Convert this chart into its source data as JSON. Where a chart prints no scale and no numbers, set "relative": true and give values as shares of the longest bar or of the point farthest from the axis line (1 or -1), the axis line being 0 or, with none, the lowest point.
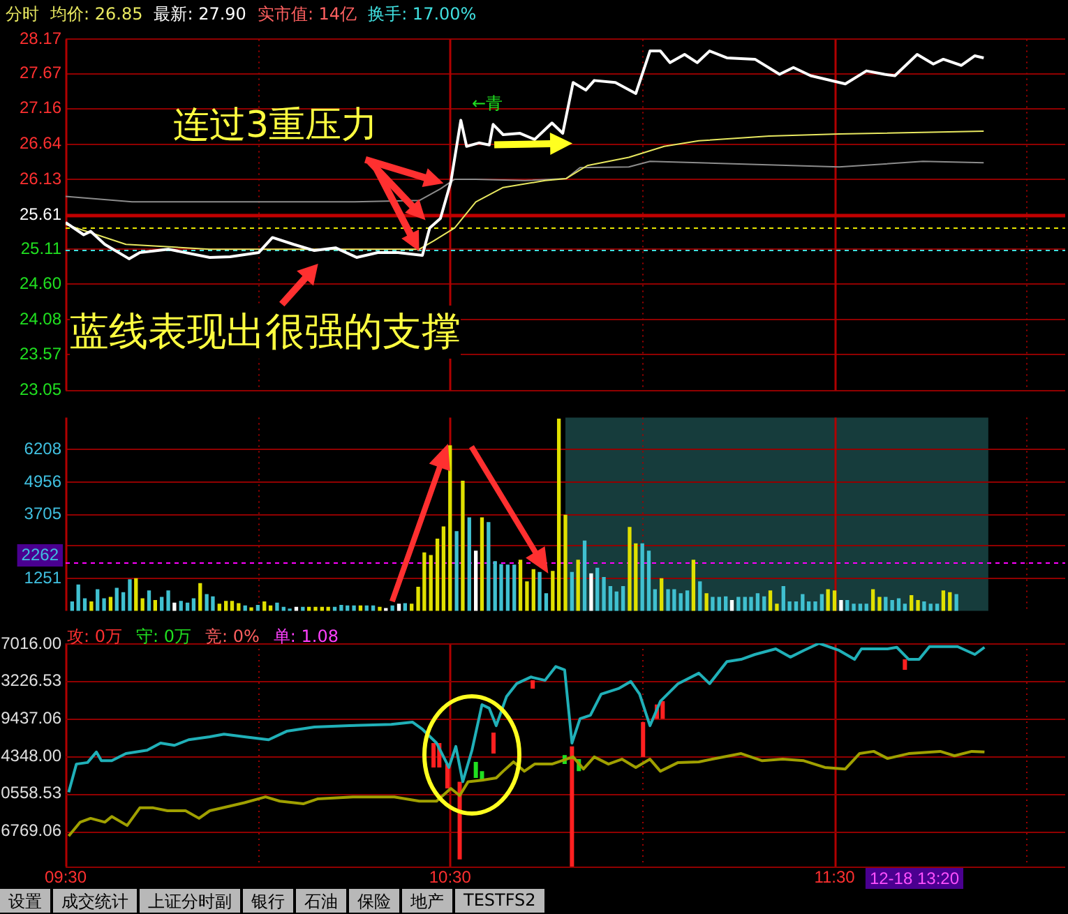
{
  "chart_data": [
    {
      "type": "line",
      "xlim": [
        9.5,
        12.1
      ],
      "xticks": [
        9.5,
        10,
        10.5,
        11,
        11.5,
        12
      ],
      "ylim": [
        23.05,
        28.17
      ],
      "yticks": [
        23.05,
        23.57,
        24.08,
        {
          "value": 24.6,
          "label": "24.60"
        },
        25.11,
        25.61,
        26.13,
        26.64,
        27.16,
        27.67,
        28.17
      ],
      "grid": true,
      "tick_labels": "y",
      "ref_lines": [
        {
          "axis": "y",
          "value": 25.61,
          "color": "#c00000",
          "line_style": "solid"
        },
        {
          "axis": "y",
          "value": 25.43,
          "color": "#e8e800",
          "line_style": "dashed"
        },
        {
          "axis": "y",
          "value": 25.11,
          "color": "#40e0e0",
          "line_style": "dashed"
        }
      ],
      "series": [
        {
          "color": "#ffffff",
          "x": [
            9.5,
            9.547,
            9.565,
            9.602,
            9.665,
            9.693,
            9.767,
            9.875,
            9.928,
            10.002,
            10.038,
            10.093,
            10.147,
            10.202,
            10.257,
            10.312,
            10.365,
            10.428,
            10.447,
            10.475,
            10.502,
            10.528,
            10.543,
            10.575,
            10.602,
            10.612,
            10.638,
            10.682,
            10.72,
            10.765,
            10.793,
            10.82,
            10.853,
            10.875,
            10.93,
            10.983,
            11.02,
            11.047,
            11.072,
            11.11,
            11.143,
            11.175,
            11.22,
            11.293,
            11.357,
            11.393,
            11.438,
            11.528,
            11.583,
            11.63,
            11.657,
            11.715,
            11.757,
            11.783,
            11.83,
            11.865,
            11.888
          ],
          "values": [
            25.5,
            25.32,
            25.37,
            25.18,
            24.97,
            25.06,
            25.11,
            24.99,
            25.0,
            25.06,
            25.28,
            25.18,
            25.09,
            25.13,
            24.99,
            25.06,
            25.06,
            25.02,
            25.42,
            25.56,
            26.09,
            26.99,
            26.61,
            26.66,
            26.63,
            26.93,
            26.78,
            26.8,
            26.71,
            26.95,
            26.8,
            27.54,
            27.43,
            27.57,
            27.54,
            27.38,
            28.0,
            28.0,
            27.83,
            27.95,
            27.83,
            28.0,
            27.9,
            27.88,
            27.66,
            27.76,
            27.64,
            27.52,
            27.71,
            27.66,
            27.64,
            27.95,
            27.81,
            27.88,
            27.79,
            27.93,
            27.9
          ]
        },
        {
          "color": "#e8e860",
          "x": [
            9.5,
            9.657,
            9.875,
            10.42,
            10.457,
            10.512,
            10.567,
            10.638,
            10.747,
            10.802,
            10.857,
            10.965,
            11.057,
            11.147,
            11.33,
            11.512,
            11.888
          ],
          "values": [
            25.47,
            25.18,
            25.11,
            25.11,
            25.23,
            25.42,
            25.8,
            26.01,
            26.11,
            26.14,
            26.33,
            26.45,
            26.61,
            26.69,
            26.76,
            26.79,
            26.83
          ]
        },
        {
          "color": "#8c8c8c",
          "x": [
            9.5,
            9.673,
            9.875,
            10.238,
            10.42,
            10.475,
            10.512,
            10.567,
            10.695,
            10.802,
            10.838,
            10.965,
            11.02,
            11.147,
            11.512,
            11.73,
            11.888
          ],
          "values": [
            25.88,
            25.8,
            25.8,
            25.8,
            25.82,
            25.99,
            26.13,
            26.13,
            26.11,
            26.14,
            26.3,
            26.31,
            26.39,
            26.37,
            26.31,
            26.39,
            26.37
          ]
        }
      ],
      "annotations": [
        "分时",
        "均价: 26.85",
        "最新: 27.90",
        "实市值: 14亿",
        "换手: 17.00%",
        "连过3重压力",
        "蓝线表现出很强的支撑",
        "←青"
      ]
    },
    {
      "type": "bar",
      "xlim": [
        9.5,
        12.1
      ],
      "xticks": [
        9.5,
        10,
        10.5,
        11,
        11.5,
        12
      ],
      "ylim": [
        0,
        7440
      ],
      "yticks": [
        1251,
        {
          "value": 2502,
          "label": null
        },
        3705,
        4956,
        6208
      ],
      "grid": true,
      "tick_labels": "y",
      "bands": [
        {
          "axis": "x",
          "from": 10.8,
          "to": 11.9,
          "color": "#163c3c"
        }
      ],
      "ref_lines": [
        {
          "axis": "y",
          "value": 1884,
          "color": "#ff00ff",
          "line_style": "dashed"
        }
      ],
      "annotations": [
        "2262"
      ],
      "x": [
        9.517,
        9.533,
        9.55,
        9.567,
        9.583,
        9.6,
        9.617,
        9.633,
        9.65,
        9.667,
        9.683,
        9.7,
        9.717,
        9.733,
        9.75,
        9.767,
        9.783,
        9.8,
        9.817,
        9.833,
        9.85,
        9.867,
        9.883,
        9.9,
        9.917,
        9.933,
        9.95,
        9.967,
        9.983,
        10,
        10.017,
        10.033,
        10.05,
        10.067,
        10.083,
        10.1,
        10.117,
        10.133,
        10.15,
        10.167,
        10.183,
        10.2,
        10.217,
        10.233,
        10.25,
        10.267,
        10.283,
        10.3,
        10.317,
        10.333,
        10.35,
        10.367,
        10.383,
        10.4,
        10.417,
        10.433,
        10.45,
        10.467,
        10.483,
        10.5,
        10.517,
        10.533,
        10.55,
        10.567,
        10.583,
        10.6,
        10.617,
        10.633,
        10.65,
        10.667,
        10.683,
        10.7,
        10.717,
        10.733,
        10.75,
        10.767,
        10.783,
        10.8,
        10.817,
        10.833,
        10.85,
        10.867,
        10.883,
        10.9,
        10.917,
        10.933,
        10.95,
        10.967,
        10.983,
        11,
        11.017,
        11.033,
        11.05,
        11.067,
        11.083,
        11.1,
        11.117,
        11.133,
        11.15,
        11.167,
        11.183,
        11.2,
        11.217,
        11.233,
        11.25,
        11.267,
        11.283,
        11.3,
        11.317,
        11.333,
        11.35,
        11.367,
        11.383,
        11.4,
        11.417,
        11.433,
        11.45,
        11.467,
        11.483,
        11.5,
        11.517,
        11.533,
        11.55,
        11.567,
        11.583,
        11.6,
        11.617,
        11.633,
        11.65,
        11.667,
        11.683,
        11.7,
        11.717,
        11.733,
        11.75,
        11.767,
        11.783,
        11.8,
        11.817
      ],
      "values": [
        350,
        1000,
        470,
        350,
        820,
        470,
        520,
        870,
        700,
        1200,
        1240,
        470,
        770,
        400,
        520,
        770,
        300,
        370,
        300,
        470,
        1050,
        630,
        540,
        260,
        370,
        370,
        280,
        190,
        120,
        210,
        350,
        190,
        300,
        140,
        70,
        140,
        140,
        140,
        140,
        140,
        140,
        140,
        210,
        190,
        190,
        190,
        190,
        190,
        140,
        90,
        190,
        260,
        280,
        260,
        910,
        2230,
        2130,
        2760,
        3230,
        6350,
        3050,
        4990,
        3580,
        2300,
        3580,
        3400,
        1900,
        1780,
        1760,
        1760,
        1950,
        1120,
        1590,
        1480,
        660,
        1520,
        7380,
        3680,
        1480,
        1950,
        2690,
        1430,
        1640,
        1290,
        940,
        730,
        940,
        3210,
        2580,
        2580,
        2300,
        820,
        1240,
        820,
        820,
        660,
        770,
        1950,
        1120,
        660,
        520,
        520,
        540,
        400,
        520,
        520,
        520,
        660,
        540,
        770,
        260,
        940,
        350,
        350,
        630,
        350,
        350,
        630,
        820,
        770,
        400,
        400,
        260,
        260,
        260,
        820,
        520,
        520,
        400,
        470,
        260,
        590,
        400,
        350,
        260,
        260,
        770,
        700,
        630
      ],
      "colors": [
        "#40c0d0",
        "#40c0d0",
        "#40c0d0",
        "#e0e000",
        "#40c0d0",
        "#40c0d0",
        "#e0e000",
        "#40c0d0",
        "#40c0d0",
        "#40c0d0",
        "#e0e000",
        "#e0e000",
        "#40c0d0",
        "#e0e000",
        "#40c0d0",
        "#40c0d0",
        "#ffffff",
        "#40c0d0",
        "#40c0d0",
        "#40c0d0",
        "#e0e000",
        "#40c0d0",
        "#40c0d0",
        "#e0e000",
        "#e0e000",
        "#e0e000",
        "#e0e000",
        "#40c0d0",
        "#e0e000",
        "#40c0d0",
        "#e0e000",
        "#e0e000",
        "#40c0d0",
        "#40c0d0",
        "#40c0d0",
        "#ffffff",
        "#40c0d0",
        "#e0e000",
        "#e0e000",
        "#e0e000",
        "#e0e000",
        "#40c0d0",
        "#40c0d0",
        "#40c0d0",
        "#40c0d0",
        "#e0e000",
        "#40c0d0",
        "#40c0d0",
        "#e0e000",
        "#ffffff",
        "#40c0d0",
        "#ffffff",
        "#40c0d0",
        "#e0e000",
        "#e0e000",
        "#e0e000",
        "#e0e000",
        "#e0e000",
        "#e0e000",
        "#e0e000",
        "#40c0d0",
        "#e0e000",
        "#40c0d0",
        "#ffffff",
        "#e0e000",
        "#40c0d0",
        "#40c0d0",
        "#40c0d0",
        "#40c0d0",
        "#40c0d0",
        "#e0e000",
        "#e0e000",
        "#e0e000",
        "#40c0d0",
        "#40c0d0",
        "#e0e000",
        "#e0e000",
        "#e0e000",
        "#40c0d0",
        "#e0e000",
        "#40c0d0",
        "#ffffff",
        "#40c0d0",
        "#40c0d0",
        "#40c0d0",
        "#40c0d0",
        "#40c0d0",
        "#e0e000",
        "#e0e000",
        "#40c0d0",
        "#40c0d0",
        "#40c0d0",
        "#e0e000",
        "#40c0d0",
        "#40c0d0",
        "#40c0d0",
        "#40c0d0",
        "#e0e000",
        "#40c0d0",
        "#e0e000",
        "#40c0d0",
        "#40c0d0",
        "#40c0d0",
        "#ffffff",
        "#40c0d0",
        "#40c0d0",
        "#40c0d0",
        "#40c0d0",
        "#40c0d0",
        "#e0e000",
        "#e0e000",
        "#40c0d0",
        "#40c0d0",
        "#40c0d0",
        "#40c0d0",
        "#40c0d0",
        "#40c0d0",
        "#40c0d0",
        "#e0e000",
        "#e0e000",
        "#ffffff",
        "#40c0d0",
        "#40c0d0",
        "#40c0d0",
        "#40c0d0",
        "#e0e000",
        "#e0e000",
        "#40c0d0",
        "#40c0d0",
        "#40c0d0",
        "#40c0d0",
        "#e0e000",
        "#e0e000",
        "#40c0d0",
        "#40c0d0",
        "#40c0d0",
        "#e0e000",
        "#e0e000",
        "#40c0d0"
      ]
    },
    {
      "type": "line",
      "relative": true,
      "xlim": [
        9.5,
        12.1
      ],
      "xticks": [
        {
          "value": 9.5,
          "label": "09:30"
        },
        {
          "value": 10,
          "label": null
        },
        {
          "value": 10.5,
          "label": "10:30"
        },
        {
          "value": 11,
          "label": null
        },
        {
          "value": 11.5,
          "label": "11:30"
        },
        {
          "value": 12,
          "label": null
        }
      ],
      "grid": true,
      "ref_lines": [
        {
          "axis": "y",
          "value": 0.997,
          "color": "#900000"
        },
        {
          "axis": "y",
          "value": 0.829,
          "color": "#900000"
        },
        {
          "axis": "y",
          "value": 0.662,
          "color": "#900000"
        },
        {
          "axis": "y",
          "value": 0.494,
          "color": "#900000"
        },
        {
          "axis": "y",
          "value": 0.327,
          "color": "#900000"
        },
        {
          "axis": "y",
          "value": 0.159,
          "color": "#900000"
        }
      ],
      "series": [
        {
          "color": "#20b0b8",
          "x": [
            9.508,
            9.528,
            9.557,
            9.58,
            9.593,
            9.62,
            9.657,
            9.712,
            9.747,
            9.783,
            9.82,
            9.875,
            9.912,
            9.965,
            10.028,
            10.075,
            10.147,
            10.238,
            10.347,
            10.402,
            10.428,
            10.465,
            10.497,
            10.515,
            10.533,
            10.557,
            10.583,
            10.602,
            10.62,
            10.647,
            10.673,
            10.71,
            10.747,
            10.775,
            10.798,
            10.817,
            10.838,
            10.865,
            10.893,
            10.938,
            10.97,
            10.993,
            11.02,
            11.047,
            11.093,
            11.147,
            11.175,
            11.22,
            11.257,
            11.293,
            11.347,
            11.385,
            11.42,
            11.46,
            11.512,
            11.552,
            11.57,
            11.638,
            11.662,
            11.693,
            11.72,
            11.747,
            11.82,
            11.865,
            11.89
          ],
          "values": [
            0.333,
            0.459,
            0.466,
            0.513,
            0.474,
            0.474,
            0.506,
            0.521,
            0.553,
            0.543,
            0.568,
            0.581,
            0.593,
            0.581,
            0.568,
            0.606,
            0.625,
            0.631,
            0.637,
            0.647,
            0.615,
            0.553,
            0.444,
            0.538,
            0.38,
            0.521,
            0.725,
            0.709,
            0.631,
            0.762,
            0.819,
            0.849,
            0.834,
            0.896,
            0.881,
            0.553,
            0.662,
            0.678,
            0.772,
            0.797,
            0.829,
            0.772,
            0.631,
            0.74,
            0.819,
            0.866,
            0.819,
            0.918,
            0.928,
            0.95,
            0.975,
            0.938,
            0.968,
            1,
            0.968,
            0.928,
            0.975,
            0.975,
            0.982,
            0.928,
            0.928,
            0.985,
            0.985,
            0.95,
            0.982
          ]
        },
        {
          "color": "#a0a000",
          "x": [
            9.508,
            9.538,
            9.565,
            9.602,
            9.62,
            9.66,
            9.693,
            9.728,
            9.765,
            9.812,
            9.847,
            9.875,
            9.928,
            9.965,
            10.02,
            10.057,
            10.118,
            10.155,
            10.247,
            10.355,
            10.42,
            10.465,
            10.502,
            10.525,
            10.547,
            10.583,
            10.62,
            10.638,
            10.665,
            10.693,
            10.72,
            10.765,
            10.82,
            10.847,
            10.875,
            10.912,
            10.947,
            10.983,
            11.02,
            11.047,
            11.093,
            11.147,
            11.182,
            11.257,
            11.312,
            11.365,
            11.42,
            11.475,
            11.528,
            11.565,
            11.602,
            11.638,
            11.693,
            11.775,
            11.812,
            11.857,
            11.89
          ],
          "values": [
            0.137,
            0.199,
            0.216,
            0.199,
            0.224,
            0.184,
            0.263,
            0.263,
            0.25,
            0.25,
            0.216,
            0.25,
            0.271,
            0.286,
            0.312,
            0.293,
            0.281,
            0.303,
            0.312,
            0.312,
            0.293,
            0.293,
            0.35,
            0.318,
            0.38,
            0.387,
            0.397,
            0.427,
            0.469,
            0.427,
            0.459,
            0.459,
            0.491,
            0.437,
            0.491,
            0.459,
            0.481,
            0.444,
            0.481,
            0.427,
            0.466,
            0.469,
            0.481,
            0.506,
            0.474,
            0.481,
            0.474,
            0.444,
            0.437,
            0.506,
            0.516,
            0.484,
            0.506,
            0.516,
            0.496,
            0.516,
            0.513
          ]
        },
        {
          "color": "#ff2020",
          "x": [
            10.457,
            10.457,
            null,
            10.472,
            10.472,
            null,
            10.493,
            10.493,
            null,
            10.525,
            10.525,
            null,
            10.613,
            10.613,
            null,
            10.715,
            10.715,
            null,
            10.817,
            10.817,
            null,
            11.002,
            11.002,
            null,
            11.038,
            11.038,
            null,
            11.053,
            11.053,
            null,
            11.683,
            11.683
          ],
          "values": [
            0.444,
            0.553,
            null,
            0.444,
            0.553,
            null,
            0.35,
            0.459,
            null,
            0.032,
            0.38,
            null,
            0.506,
            0.6,
            null,
            0.797,
            0.834,
            null,
            0,
            0.538,
            null,
            0.491,
            0.647,
            null,
            0.662,
            0.726,
            null,
            0.662,
            0.741,
            null,
            0.881,
            0.928
          ]
        },
        {
          "color": "#20e020",
          "x": [
            10.567,
            10.567,
            null,
            10.583,
            10.583,
            null,
            10.798,
            10.798,
            null,
            10.835,
            10.835
          ],
          "values": [
            0.397,
            0.469,
            null,
            0.387,
            0.427,
            null,
            0.459,
            0.499,
            null,
            0.427,
            0.481
          ]
        }
      ],
      "annotations": [
        "攻: 0万",
        "守: 0万",
        "竞: 0%",
        "单: 1.08",
        "12-18 13:20",
        "7016.00",
        "3226.53",
        "9437.06",
        "4348.00",
        "0558.53",
        "6769.06"
      ]
    },
    {
      "type": "other",
      "annotations": [
        "设置",
        "成交统计",
        "上证分时副",
        "银行",
        "石油",
        "保险",
        "地产",
        "TESTFS2"
      ]
    }
  ]
}
